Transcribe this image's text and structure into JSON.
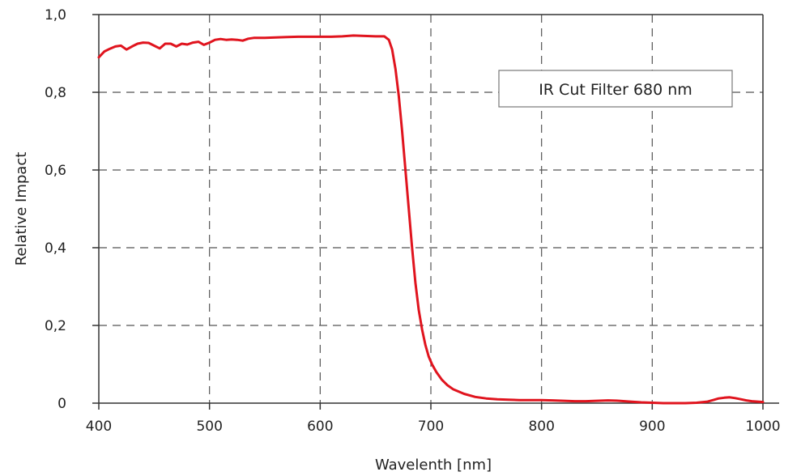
{
  "chart_data": {
    "type": "line",
    "xlabel": "Wavelenth [nm]",
    "ylabel": "Relative Impact",
    "xlim": [
      400,
      1000
    ],
    "ylim": [
      0,
      1.0
    ],
    "x_ticks": [
      400,
      500,
      600,
      700,
      800,
      900,
      1000
    ],
    "y_ticks": [
      0,
      0.2,
      0.4,
      0.6,
      0.8,
      1.0
    ],
    "x_tick_labels": [
      "400",
      "500",
      "600",
      "700",
      "800",
      "900",
      "1000"
    ],
    "y_tick_labels": [
      "0",
      "0,2",
      "0,4",
      "0,6",
      "0,8",
      "1,0"
    ],
    "grid": true,
    "legend_placement": "top-right",
    "series": [
      {
        "name": "IR Cut Filter 680 nm",
        "color": "#e0141e",
        "x": [
          400,
          405,
          410,
          415,
          420,
          425,
          430,
          435,
          440,
          445,
          450,
          455,
          460,
          465,
          470,
          475,
          480,
          485,
          490,
          495,
          500,
          505,
          510,
          515,
          520,
          525,
          530,
          535,
          540,
          550,
          560,
          570,
          580,
          590,
          600,
          610,
          620,
          630,
          640,
          650,
          658,
          662,
          665,
          668,
          671,
          674,
          677,
          680,
          683,
          686,
          689,
          692,
          695,
          698,
          701,
          705,
          710,
          715,
          720,
          730,
          740,
          750,
          760,
          770,
          780,
          790,
          800,
          810,
          820,
          830,
          840,
          850,
          860,
          870,
          880,
          890,
          900,
          910,
          920,
          930,
          940,
          950,
          955,
          960,
          965,
          970,
          975,
          980,
          985,
          990,
          995,
          1000
        ],
        "y": [
          0.89,
          0.905,
          0.912,
          0.918,
          0.92,
          0.91,
          0.918,
          0.925,
          0.928,
          0.927,
          0.92,
          0.913,
          0.925,
          0.925,
          0.918,
          0.925,
          0.923,
          0.928,
          0.93,
          0.922,
          0.928,
          0.935,
          0.937,
          0.935,
          0.936,
          0.935,
          0.933,
          0.938,
          0.94,
          0.94,
          0.941,
          0.942,
          0.943,
          0.943,
          0.943,
          0.943,
          0.944,
          0.946,
          0.945,
          0.944,
          0.944,
          0.935,
          0.91,
          0.86,
          0.79,
          0.7,
          0.6,
          0.5,
          0.4,
          0.31,
          0.24,
          0.19,
          0.15,
          0.12,
          0.1,
          0.08,
          0.06,
          0.046,
          0.036,
          0.024,
          0.016,
          0.012,
          0.01,
          0.009,
          0.008,
          0.008,
          0.008,
          0.007,
          0.006,
          0.005,
          0.005,
          0.006,
          0.007,
          0.006,
          0.004,
          0.002,
          0.001,
          0.0,
          0.0,
          0.0,
          0.001,
          0.004,
          0.008,
          0.012,
          0.014,
          0.015,
          0.013,
          0.01,
          0.007,
          0.005,
          0.004,
          0.003
        ]
      }
    ]
  }
}
